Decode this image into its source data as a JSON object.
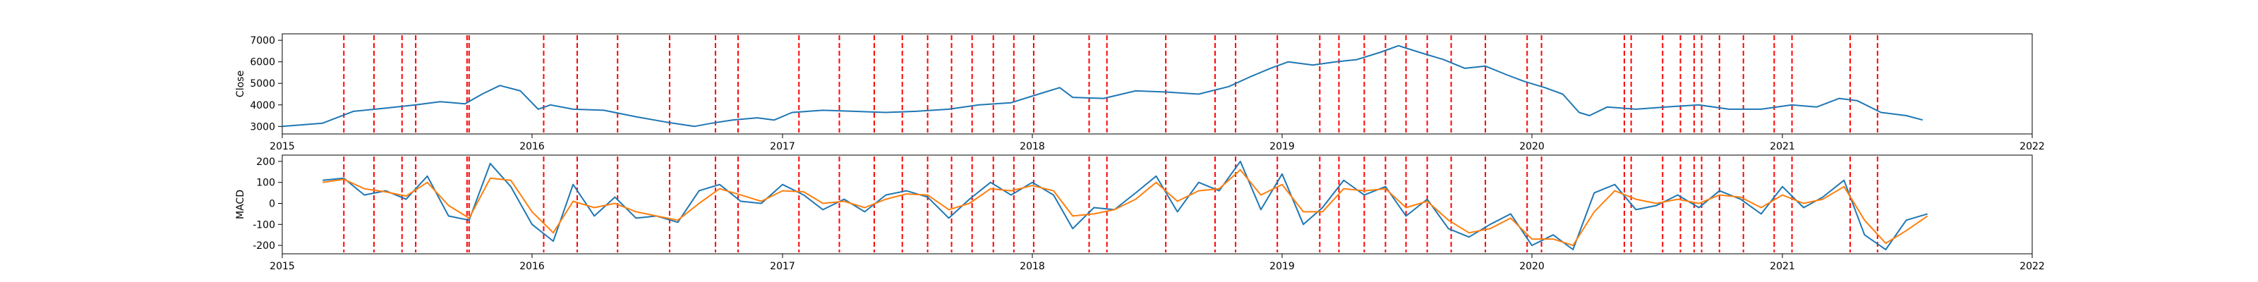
{
  "chart_data": [
    {
      "type": "line",
      "panel": "top",
      "title": "",
      "xlabel": "",
      "ylabel": "Close",
      "xlim": [
        "2015-01-01",
        "2022-01-01"
      ],
      "ylim": [
        2650,
        7300
      ],
      "x_ticks": [
        "2015",
        "2016",
        "2017",
        "2018",
        "2019",
        "2020",
        "2021",
        "2022"
      ],
      "y_ticks": [
        3000,
        4000,
        5000,
        6000,
        7000
      ],
      "grid": false,
      "colors": {
        "line": "#1f77b4",
        "vline": "#ff0000"
      },
      "series": [
        {
          "x": [
            "2015-01-01",
            "2015-03-01",
            "2015-04-15",
            "2015-06-01",
            "2015-07-15",
            "2015-08-20",
            "2015-09-25",
            "2015-10-20",
            "2015-11-15",
            "2015-12-15",
            "2016-01-10",
            "2016-01-28",
            "2016-03-01",
            "2016-04-15",
            "2016-06-01",
            "2016-07-15",
            "2016-08-25",
            "2016-09-20",
            "2016-10-20",
            "2016-11-25",
            "2016-12-20",
            "2017-01-15",
            "2017-03-01",
            "2017-04-15",
            "2017-06-01",
            "2017-07-15",
            "2017-09-01",
            "2017-10-15",
            "2017-12-01",
            "2018-01-15",
            "2018-02-10",
            "2018-03-01",
            "2018-04-15",
            "2018-06-01",
            "2018-07-15",
            "2018-09-01",
            "2018-10-15",
            "2018-11-15",
            "2018-12-15",
            "2019-01-10",
            "2019-02-15",
            "2019-03-20",
            "2019-04-20",
            "2019-05-25",
            "2019-06-20",
            "2019-07-20",
            "2019-08-25",
            "2019-09-25",
            "2019-10-25",
            "2019-11-25",
            "2019-12-20",
            "2020-01-20",
            "2020-02-15",
            "2020-03-10",
            "2020-03-25",
            "2020-04-20",
            "2020-06-01",
            "2020-07-15",
            "2020-09-01",
            "2020-10-15",
            "2020-12-01",
            "2021-01-15",
            "2021-02-20",
            "2021-03-25",
            "2021-04-20",
            "2021-05-25",
            "2021-07-01",
            "2021-07-25"
          ],
          "y": [
            3000,
            3150,
            3700,
            3850,
            4000,
            4150,
            4050,
            4500,
            4900,
            4650,
            3800,
            4000,
            3800,
            3750,
            3450,
            3200,
            3000,
            3150,
            3300,
            3400,
            3300,
            3650,
            3750,
            3700,
            3650,
            3700,
            3800,
            4000,
            4100,
            4550,
            4800,
            4350,
            4300,
            4650,
            4600,
            4500,
            4850,
            5300,
            5700,
            6000,
            5850,
            6000,
            6100,
            6450,
            6750,
            6450,
            6100,
            5700,
            5800,
            5400,
            5100,
            4800,
            4500,
            3650,
            3500,
            3900,
            3800,
            3900,
            4000,
            3800,
            3800,
            4000,
            3900,
            4300,
            4200,
            3650,
            3500,
            3300
          ]
        }
      ],
      "event_lines": [
        "2015-04-01",
        "2015-05-15",
        "2015-06-25",
        "2015-07-15",
        "2015-09-28",
        "2015-10-01",
        "2016-01-18",
        "2016-03-07",
        "2016-05-05",
        "2016-07-20",
        "2016-09-25",
        "2016-10-28",
        "2017-01-25",
        "2017-03-25",
        "2017-05-15",
        "2017-06-25",
        "2017-08-01",
        "2017-09-05",
        "2017-10-05",
        "2017-11-05",
        "2017-12-05",
        "2018-01-03",
        "2018-03-25",
        "2018-04-20",
        "2018-07-15",
        "2018-09-25",
        "2018-10-25",
        "2018-12-25",
        "2019-02-25",
        "2019-03-25",
        "2019-05-01",
        "2019-06-01",
        "2019-07-01",
        "2019-08-01",
        "2019-09-05",
        "2019-10-25",
        "2019-12-25",
        "2020-01-15",
        "2020-05-15",
        "2020-05-25",
        "2020-07-10",
        "2020-08-05",
        "2020-08-25",
        "2020-09-05",
        "2020-10-01",
        "2020-11-05",
        "2020-12-20",
        "2021-01-15",
        "2021-04-10",
        "2021-05-20"
      ]
    },
    {
      "type": "line",
      "panel": "bottom",
      "title": "",
      "xlabel": "",
      "ylabel": "MACD",
      "xlim": [
        "2015-01-01",
        "2022-01-01"
      ],
      "ylim": [
        -240,
        230
      ],
      "x_ticks": [
        "2015",
        "2016",
        "2017",
        "2018",
        "2019",
        "2020",
        "2021",
        "2022"
      ],
      "y_ticks": [
        -200,
        -100,
        0,
        100,
        200
      ],
      "grid": false,
      "colors": {
        "macd": "#1f77b4",
        "signal": "#ff7f0e",
        "vline": "#ff0000"
      },
      "series": [
        {
          "x": [
            "2015-03-01",
            "2015-04-01",
            "2015-05-01",
            "2015-06-01",
            "2015-07-01",
            "2015-08-01",
            "2015-09-01",
            "2015-10-01",
            "2015-11-01",
            "2015-12-01",
            "2016-01-01",
            "2016-02-01",
            "2016-03-01",
            "2016-04-01",
            "2016-05-01",
            "2016-06-01",
            "2016-07-01",
            "2016-08-01",
            "2016-09-01",
            "2016-10-01",
            "2016-11-01",
            "2016-12-01",
            "2017-01-01",
            "2017-02-01",
            "2017-03-01",
            "2017-04-01",
            "2017-05-01",
            "2017-06-01",
            "2017-07-01",
            "2017-08-01",
            "2017-09-01",
            "2017-10-01",
            "2017-11-01",
            "2017-12-01",
            "2018-01-01",
            "2018-02-01",
            "2018-03-01",
            "2018-04-01",
            "2018-05-01",
            "2018-06-01",
            "2018-07-01",
            "2018-08-01",
            "2018-09-01",
            "2018-10-01",
            "2018-11-01",
            "2018-12-01",
            "2019-01-01",
            "2019-02-01",
            "2019-03-01",
            "2019-04-01",
            "2019-05-01",
            "2019-06-01",
            "2019-07-01",
            "2019-08-01",
            "2019-09-01",
            "2019-10-01",
            "2019-11-01",
            "2019-12-01",
            "2020-01-01",
            "2020-02-01",
            "2020-03-01",
            "2020-04-01",
            "2020-05-01",
            "2020-06-01",
            "2020-07-01",
            "2020-08-01",
            "2020-09-01",
            "2020-10-01",
            "2020-11-01",
            "2020-12-01",
            "2021-01-01",
            "2021-02-01",
            "2021-03-01",
            "2021-04-01",
            "2021-05-01",
            "2021-06-01",
            "2021-07-01",
            "2021-08-01"
          ],
          "y": [
            110,
            120,
            40,
            60,
            20,
            130,
            -60,
            -80,
            190,
            80,
            -100,
            -180,
            90,
            -60,
            30,
            -70,
            -60,
            -90,
            60,
            90,
            10,
            0,
            90,
            40,
            -30,
            20,
            -40,
            40,
            60,
            30,
            -70,
            20,
            100,
            40,
            100,
            40,
            -120,
            -20,
            -30,
            50,
            130,
            -40,
            100,
            60,
            200,
            -30,
            140,
            -100,
            -20,
            110,
            40,
            80,
            -60,
            20,
            -120,
            -160,
            -100,
            -50,
            -200,
            -150,
            -220,
            50,
            90,
            -30,
            -10,
            40,
            -20,
            60,
            20,
            -50,
            80,
            -20,
            30,
            110,
            -150,
            -220,
            -80,
            -50
          ],
          "name": ""
        },
        {
          "x": [
            "2015-03-01",
            "2015-04-01",
            "2015-05-01",
            "2015-06-01",
            "2015-07-01",
            "2015-08-01",
            "2015-09-01",
            "2015-10-01",
            "2015-11-01",
            "2015-12-01",
            "2016-01-01",
            "2016-02-01",
            "2016-03-01",
            "2016-04-01",
            "2016-05-01",
            "2016-06-01",
            "2016-07-01",
            "2016-08-01",
            "2016-09-01",
            "2016-10-01",
            "2016-11-01",
            "2016-12-01",
            "2017-01-01",
            "2017-02-01",
            "2017-03-01",
            "2017-04-01",
            "2017-05-01",
            "2017-06-01",
            "2017-07-01",
            "2017-08-01",
            "2017-09-01",
            "2017-10-01",
            "2017-11-01",
            "2017-12-01",
            "2018-01-01",
            "2018-02-01",
            "2018-03-01",
            "2018-04-01",
            "2018-05-01",
            "2018-06-01",
            "2018-07-01",
            "2018-08-01",
            "2018-09-01",
            "2018-10-01",
            "2018-11-01",
            "2018-12-01",
            "2019-01-01",
            "2019-02-01",
            "2019-03-01",
            "2019-04-01",
            "2019-05-01",
            "2019-06-01",
            "2019-07-01",
            "2019-08-01",
            "2019-09-01",
            "2019-10-01",
            "2019-11-01",
            "2019-12-01",
            "2020-01-01",
            "2020-02-01",
            "2020-03-01",
            "2020-04-01",
            "2020-05-01",
            "2020-06-01",
            "2020-07-01",
            "2020-08-01",
            "2020-09-01",
            "2020-10-01",
            "2020-11-01",
            "2020-12-01",
            "2021-01-01",
            "2021-02-01",
            "2021-03-01",
            "2021-04-01",
            "2021-05-01",
            "2021-06-01",
            "2021-07-01",
            "2021-08-01"
          ],
          "y": [
            100,
            115,
            70,
            55,
            35,
            100,
            -10,
            -70,
            120,
            110,
            -40,
            -140,
            10,
            -20,
            0,
            -40,
            -60,
            -80,
            0,
            70,
            40,
            10,
            60,
            55,
            0,
            10,
            -20,
            20,
            45,
            40,
            -30,
            0,
            70,
            60,
            85,
            60,
            -60,
            -50,
            -30,
            20,
            100,
            10,
            60,
            70,
            160,
            40,
            90,
            -40,
            -40,
            70,
            60,
            70,
            -20,
            10,
            -80,
            -140,
            -120,
            -70,
            -170,
            -170,
            -200,
            -40,
            60,
            20,
            0,
            20,
            0,
            40,
            30,
            -20,
            40,
            0,
            20,
            80,
            -80,
            -190,
            -130,
            -60
          ],
          "name": ""
        }
      ],
      "event_lines": [
        "2015-04-01",
        "2015-05-15",
        "2015-06-25",
        "2015-07-15",
        "2015-09-28",
        "2015-10-01",
        "2016-01-18",
        "2016-03-07",
        "2016-05-05",
        "2016-07-20",
        "2016-09-25",
        "2016-10-28",
        "2017-01-25",
        "2017-03-25",
        "2017-05-15",
        "2017-06-25",
        "2017-08-01",
        "2017-09-05",
        "2017-10-05",
        "2017-11-05",
        "2017-12-05",
        "2018-01-03",
        "2018-03-25",
        "2018-04-20",
        "2018-07-15",
        "2018-09-25",
        "2018-10-25",
        "2018-12-25",
        "2019-02-25",
        "2019-03-25",
        "2019-05-01",
        "2019-06-01",
        "2019-07-01",
        "2019-08-01",
        "2019-09-05",
        "2019-10-25",
        "2019-12-25",
        "2020-01-15",
        "2020-05-15",
        "2020-05-25",
        "2020-07-10",
        "2020-08-05",
        "2020-08-25",
        "2020-09-05",
        "2020-10-01",
        "2020-11-05",
        "2020-12-20",
        "2021-01-15",
        "2021-04-10",
        "2021-05-20"
      ]
    }
  ]
}
